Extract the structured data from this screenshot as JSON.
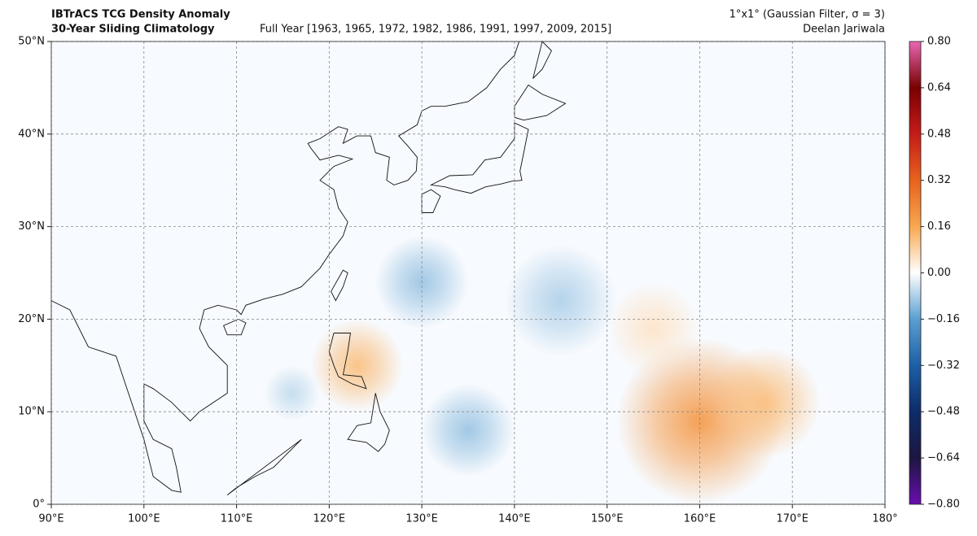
{
  "header": {
    "title": "IBTrACS TCG Density Anomaly",
    "subtitle": "30-Year Sliding Climatology",
    "period": "Full Year [1963, 1965, 1972, 1982, 1986, 1991, 1997, 2009, 2015]",
    "resolution": "1°x1° (Gaussian Filter, σ = 3)",
    "author": "Deelan Jariwala"
  },
  "map": {
    "xlim": [
      90,
      180
    ],
    "ylim": [
      0,
      50
    ],
    "xticks": [
      {
        "value": 90,
        "label": "90°E"
      },
      {
        "value": 100,
        "label": "100°E"
      },
      {
        "value": 110,
        "label": "110°E"
      },
      {
        "value": 120,
        "label": "120°E"
      },
      {
        "value": 130,
        "label": "130°E"
      },
      {
        "value": 140,
        "label": "140°E"
      },
      {
        "value": 150,
        "label": "150°E"
      },
      {
        "value": 160,
        "label": "160°E"
      },
      {
        "value": 170,
        "label": "170°E"
      },
      {
        "value": 180,
        "label": "180°"
      }
    ],
    "yticks": [
      {
        "value": 0,
        "label": "0°"
      },
      {
        "value": 10,
        "label": "10°N"
      },
      {
        "value": 20,
        "label": "20°N"
      },
      {
        "value": 30,
        "label": "30°N"
      },
      {
        "value": 40,
        "label": "40°N"
      },
      {
        "value": 50,
        "label": "50°N"
      }
    ],
    "grid": true,
    "anomalies": [
      {
        "lon": 160,
        "lat": 9,
        "value": 0.2,
        "radius": 9
      },
      {
        "lon": 167,
        "lat": 11,
        "value": 0.12,
        "radius": 6
      },
      {
        "lon": 123,
        "lat": 15,
        "value": 0.12,
        "radius": 5
      },
      {
        "lon": 155,
        "lat": 19,
        "value": 0.05,
        "radius": 5
      },
      {
        "lon": 130,
        "lat": 24,
        "value": -0.1,
        "radius": 5
      },
      {
        "lon": 145,
        "lat": 22,
        "value": -0.08,
        "radius": 6
      },
      {
        "lon": 135,
        "lat": 8,
        "value": -0.1,
        "radius": 5
      },
      {
        "lon": 116,
        "lat": 12,
        "value": -0.06,
        "radius": 3
      }
    ]
  },
  "colorbar": {
    "lim": [
      -0.8,
      0.8
    ],
    "ticks": [
      {
        "value": -0.8,
        "label": "−0.80"
      },
      {
        "value": -0.64,
        "label": "−0.64"
      },
      {
        "value": -0.48,
        "label": "−0.48"
      },
      {
        "value": -0.32,
        "label": "−0.32"
      },
      {
        "value": -0.16,
        "label": "−0.16"
      },
      {
        "value": 0,
        "label": "0.00"
      },
      {
        "value": 0.16,
        "label": "0.16"
      },
      {
        "value": 0.32,
        "label": "0.32"
      },
      {
        "value": 0.48,
        "label": "0.48"
      },
      {
        "value": 0.64,
        "label": "0.64"
      },
      {
        "value": 0.8,
        "label": "0.80"
      }
    ],
    "colors": [
      "#6a0db0",
      "#1c1640",
      "#0d2c68",
      "#1d5fa6",
      "#5a9fd0",
      "#ffffff",
      "#f8a850",
      "#e8621c",
      "#c41c1a",
      "#7a0000",
      "#e866b4"
    ]
  }
}
